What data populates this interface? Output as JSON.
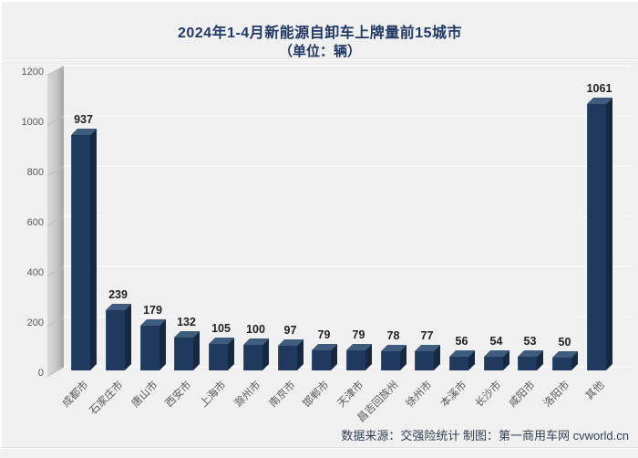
{
  "title": "2024年1-4月新能源自卸车上牌量前15城市",
  "subtitle": "（单位：辆）",
  "source_note": "数据来源：交强险统计 制图：第一商用车网 cvworld.cn",
  "chart_data": {
    "type": "bar",
    "style": "3d-column",
    "title": "2024年1-4月新能源自卸车上牌量前15城市",
    "subtitle": "（单位：辆）",
    "categories": [
      "成都市",
      "石家庄市",
      "唐山市",
      "西安市",
      "上海市",
      "滁州市",
      "南京市",
      "邯郸市",
      "天津市",
      "昌吉回族州",
      "徐州市",
      "本溪市",
      "长沙市",
      "咸阳市",
      "洛阳市",
      "其他"
    ],
    "values": [
      937,
      239,
      179,
      132,
      105,
      100,
      97,
      79,
      79,
      78,
      77,
      56,
      54,
      53,
      50,
      1061
    ],
    "ylim": [
      0,
      1200
    ],
    "yticks": [
      0,
      200,
      400,
      600,
      800,
      1000,
      1200
    ],
    "grid": true,
    "legend": false,
    "value_labels": true,
    "colors": {
      "background": "#f0f0f0",
      "title": "#1f3864",
      "bar_front": "#1f3a5e",
      "bar_top": "#3e5c7d",
      "bar_side": "#16293f",
      "gridline": "#f8f8f8",
      "axis_label": "#595959",
      "value_label": "#1f1f1f",
      "wall_light": "#d8d8d8",
      "wall_dark": "#a3a3a3",
      "source_text": "#333f52"
    }
  }
}
